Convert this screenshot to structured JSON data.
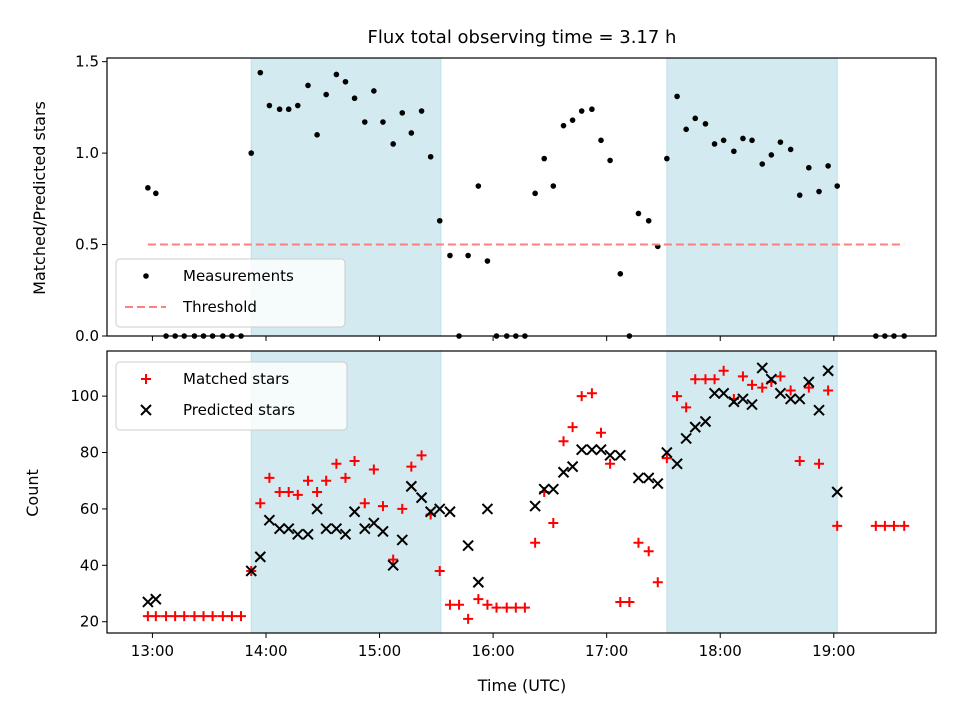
{
  "chart_data": {
    "title": "Flux total observing time = 3.17 h",
    "xlabel": "Time (UTC)",
    "x_unit": "hours (UTC clock time)",
    "xlim": [
      12.6,
      19.9
    ],
    "x_ticks": [
      {
        "value": 13,
        "label": "13:00"
      },
      {
        "value": 14,
        "label": "14:00"
      },
      {
        "value": 15,
        "label": "15:00"
      },
      {
        "value": 16,
        "label": "16:00"
      },
      {
        "value": 17,
        "label": "17:00"
      },
      {
        "value": 18,
        "label": "18:00"
      },
      {
        "value": 19,
        "label": "19:00"
      }
    ],
    "shaded_regions": {
      "color": "#d3eaf0",
      "ranges": [
        [
          13.87,
          15.54
        ],
        [
          17.53,
          19.03
        ]
      ]
    },
    "panels": [
      {
        "type": "scatter",
        "ylabel": "Matched/Predicted stars",
        "ylim": [
          0,
          1.52
        ],
        "y_ticks": [
          {
            "value": 0,
            "label": "0.0"
          },
          {
            "value": 0.5,
            "label": "0.5"
          },
          {
            "value": 1.0,
            "label": "1.0"
          },
          {
            "value": 1.5,
            "label": "1.5"
          }
        ],
        "legend_position": "lower-left",
        "series": [
          {
            "name": "Measurements",
            "marker": "dot",
            "color": "#000000",
            "points": [
              [
                12.96,
                0.81
              ],
              [
                13.03,
                0.78
              ],
              [
                13.12,
                0
              ],
              [
                13.2,
                0
              ],
              [
                13.28,
                0
              ],
              [
                13.37,
                0
              ],
              [
                13.45,
                0
              ],
              [
                13.53,
                0
              ],
              [
                13.62,
                0
              ],
              [
                13.7,
                0
              ],
              [
                13.78,
                0
              ],
              [
                13.87,
                1.0
              ],
              [
                13.95,
                1.44
              ],
              [
                14.03,
                1.26
              ],
              [
                14.12,
                1.24
              ],
              [
                14.2,
                1.24
              ],
              [
                14.28,
                1.26
              ],
              [
                14.37,
                1.37
              ],
              [
                14.45,
                1.1
              ],
              [
                14.53,
                1.32
              ],
              [
                14.62,
                1.43
              ],
              [
                14.7,
                1.39
              ],
              [
                14.78,
                1.3
              ],
              [
                14.87,
                1.17
              ],
              [
                14.95,
                1.34
              ],
              [
                15.03,
                1.17
              ],
              [
                15.12,
                1.05
              ],
              [
                15.2,
                1.22
              ],
              [
                15.28,
                1.11
              ],
              [
                15.37,
                1.23
              ],
              [
                15.45,
                0.98
              ],
              [
                15.53,
                0.63
              ],
              [
                15.62,
                0.44
              ],
              [
                15.7,
                0
              ],
              [
                15.78,
                0.44
              ],
              [
                15.87,
                0.82
              ],
              [
                15.95,
                0.41
              ],
              [
                16.03,
                0
              ],
              [
                16.12,
                0
              ],
              [
                16.2,
                0
              ],
              [
                16.28,
                0
              ],
              [
                16.37,
                0.78
              ],
              [
                16.45,
                0.97
              ],
              [
                16.53,
                0.82
              ],
              [
                16.62,
                1.15
              ],
              [
                16.7,
                1.18
              ],
              [
                16.78,
                1.23
              ],
              [
                16.87,
                1.24
              ],
              [
                16.95,
                1.07
              ],
              [
                17.03,
                0.96
              ],
              [
                17.12,
                0.34
              ],
              [
                17.2,
                0
              ],
              [
                17.28,
                0.67
              ],
              [
                17.37,
                0.63
              ],
              [
                17.45,
                0.49
              ],
              [
                17.53,
                0.97
              ],
              [
                17.62,
                1.31
              ],
              [
                17.7,
                1.13
              ],
              [
                17.78,
                1.19
              ],
              [
                17.87,
                1.16
              ],
              [
                17.95,
                1.05
              ],
              [
                18.03,
                1.07
              ],
              [
                18.12,
                1.01
              ],
              [
                18.2,
                1.08
              ],
              [
                18.28,
                1.07
              ],
              [
                18.37,
                0.94
              ],
              [
                18.45,
                0.99
              ],
              [
                18.53,
                1.06
              ],
              [
                18.62,
                1.02
              ],
              [
                18.7,
                0.77
              ],
              [
                18.78,
                0.92
              ],
              [
                18.87,
                0.79
              ],
              [
                18.95,
                0.93
              ],
              [
                19.03,
                0.82
              ],
              [
                19.37,
                0
              ],
              [
                19.45,
                0
              ],
              [
                19.53,
                0
              ],
              [
                19.62,
                0
              ]
            ]
          },
          {
            "name": "Threshold",
            "marker": "dashed-line",
            "color": "#ff7f7f",
            "points": [
              [
                12.96,
                0.5
              ],
              [
                19.62,
                0.5
              ]
            ]
          }
        ]
      },
      {
        "type": "scatter",
        "ylabel": "Count",
        "ylim": [
          16,
          116
        ],
        "y_ticks": [
          {
            "value": 20,
            "label": "20"
          },
          {
            "value": 40,
            "label": "40"
          },
          {
            "value": 60,
            "label": "60"
          },
          {
            "value": 80,
            "label": "80"
          },
          {
            "value": 100,
            "label": "100"
          }
        ],
        "legend_position": "top-left",
        "series": [
          {
            "name": "Matched stars",
            "marker": "plus",
            "color": "#ff0000",
            "points": [
              [
                12.96,
                22
              ],
              [
                13.03,
                22
              ],
              [
                13.12,
                22
              ],
              [
                13.2,
                22
              ],
              [
                13.28,
                22
              ],
              [
                13.37,
                22
              ],
              [
                13.45,
                22
              ],
              [
                13.53,
                22
              ],
              [
                13.62,
                22
              ],
              [
                13.7,
                22
              ],
              [
                13.78,
                22
              ],
              [
                13.87,
                38
              ],
              [
                13.95,
                62
              ],
              [
                14.03,
                71
              ],
              [
                14.12,
                66
              ],
              [
                14.2,
                66
              ],
              [
                14.28,
                65
              ],
              [
                14.37,
                70
              ],
              [
                14.45,
                66
              ],
              [
                14.53,
                70
              ],
              [
                14.62,
                76
              ],
              [
                14.7,
                71
              ],
              [
                14.78,
                77
              ],
              [
                14.87,
                62
              ],
              [
                14.95,
                74
              ],
              [
                15.03,
                61
              ],
              [
                15.12,
                42
              ],
              [
                15.2,
                60
              ],
              [
                15.28,
                75
              ],
              [
                15.37,
                79
              ],
              [
                15.45,
                58
              ],
              [
                15.53,
                38
              ],
              [
                15.62,
                26
              ],
              [
                15.7,
                26
              ],
              [
                15.78,
                21
              ],
              [
                15.87,
                28
              ],
              [
                15.95,
                26
              ],
              [
                16.03,
                25
              ],
              [
                16.12,
                25
              ],
              [
                16.2,
                25
              ],
              [
                16.28,
                25
              ],
              [
                16.37,
                48
              ],
              [
                16.45,
                66
              ],
              [
                16.53,
                55
              ],
              [
                16.62,
                84
              ],
              [
                16.7,
                89
              ],
              [
                16.78,
                100
              ],
              [
                16.87,
                101
              ],
              [
                16.95,
                87
              ],
              [
                17.03,
                76
              ],
              [
                17.12,
                27
              ],
              [
                17.2,
                27
              ],
              [
                17.28,
                48
              ],
              [
                17.37,
                45
              ],
              [
                17.45,
                34
              ],
              [
                17.53,
                78
              ],
              [
                17.62,
                100
              ],
              [
                17.7,
                96
              ],
              [
                17.78,
                106
              ],
              [
                17.87,
                106
              ],
              [
                17.95,
                106
              ],
              [
                18.03,
                109
              ],
              [
                18.12,
                99
              ],
              [
                18.2,
                107
              ],
              [
                18.28,
                104
              ],
              [
                18.37,
                103
              ],
              [
                18.45,
                105
              ],
              [
                18.53,
                107
              ],
              [
                18.62,
                102
              ],
              [
                18.7,
                77
              ],
              [
                18.78,
                103
              ],
              [
                18.87,
                76
              ],
              [
                18.95,
                102
              ],
              [
                19.03,
                54
              ],
              [
                19.37,
                54
              ],
              [
                19.45,
                54
              ],
              [
                19.53,
                54
              ],
              [
                19.62,
                54
              ]
            ]
          },
          {
            "name": "Predicted stars",
            "marker": "x",
            "color": "#000000",
            "points": [
              [
                12.96,
                27
              ],
              [
                13.03,
                28
              ],
              [
                13.87,
                38
              ],
              [
                13.95,
                43
              ],
              [
                14.03,
                56
              ],
              [
                14.12,
                53
              ],
              [
                14.2,
                53
              ],
              [
                14.28,
                51
              ],
              [
                14.37,
                51
              ],
              [
                14.45,
                60
              ],
              [
                14.53,
                53
              ],
              [
                14.62,
                53
              ],
              [
                14.7,
                51
              ],
              [
                14.78,
                59
              ],
              [
                14.87,
                53
              ],
              [
                14.95,
                55
              ],
              [
                15.03,
                52
              ],
              [
                15.12,
                40
              ],
              [
                15.2,
                49
              ],
              [
                15.28,
                68
              ],
              [
                15.37,
                64
              ],
              [
                15.45,
                59
              ],
              [
                15.53,
                60
              ],
              [
                15.62,
                59
              ],
              [
                15.78,
                47
              ],
              [
                15.87,
                34
              ],
              [
                15.95,
                60
              ],
              [
                16.37,
                61
              ],
              [
                16.45,
                67
              ],
              [
                16.53,
                67
              ],
              [
                16.62,
                73
              ],
              [
                16.7,
                75
              ],
              [
                16.78,
                81
              ],
              [
                16.87,
                81
              ],
              [
                16.95,
                81
              ],
              [
                17.03,
                79
              ],
              [
                17.12,
                79
              ],
              [
                17.28,
                71
              ],
              [
                17.37,
                71
              ],
              [
                17.45,
                69
              ],
              [
                17.53,
                80
              ],
              [
                17.62,
                76
              ],
              [
                17.7,
                85
              ],
              [
                17.78,
                89
              ],
              [
                17.87,
                91
              ],
              [
                17.95,
                101
              ],
              [
                18.03,
                101
              ],
              [
                18.12,
                98
              ],
              [
                18.2,
                99
              ],
              [
                18.28,
                97
              ],
              [
                18.37,
                110
              ],
              [
                18.45,
                106
              ],
              [
                18.53,
                101
              ],
              [
                18.62,
                99
              ],
              [
                18.7,
                99
              ],
              [
                18.78,
                105
              ],
              [
                18.87,
                95
              ],
              [
                18.95,
                109
              ],
              [
                19.03,
                66
              ]
            ]
          }
        ]
      }
    ]
  }
}
